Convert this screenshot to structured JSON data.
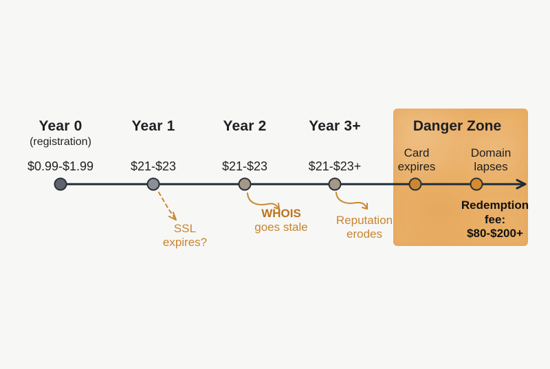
{
  "timeline": {
    "milestones": [
      {
        "year": "Year 0",
        "subtext": "(registration)",
        "price": "$0.99-$1.99"
      },
      {
        "year": "Year 1",
        "price": "$21-$23"
      },
      {
        "year": "Year 2",
        "price": "$21-$23"
      },
      {
        "year": "Year 3+",
        "price": "$21-$23+"
      }
    ],
    "danger_zone": {
      "title": "Danger Zone",
      "card_line1": "Card",
      "card_line2": "expires",
      "domain_line1": "Domain",
      "domain_line2": "lapses",
      "redemption_line1": "Redemption",
      "redemption_line2": "fee:",
      "redemption_line3": "$80-$200+"
    },
    "notes": {
      "ssl_line1": "SSL",
      "ssl_line2": "expires?",
      "whois_bold": "WHOIS",
      "whois_rest": "goes stale",
      "reputation_line1": "Reputation",
      "reputation_line2": "erodes"
    }
  },
  "colors": {
    "danger_zone": "#e9a857",
    "accent": "#c98733",
    "timeline": "#1f2b38"
  }
}
